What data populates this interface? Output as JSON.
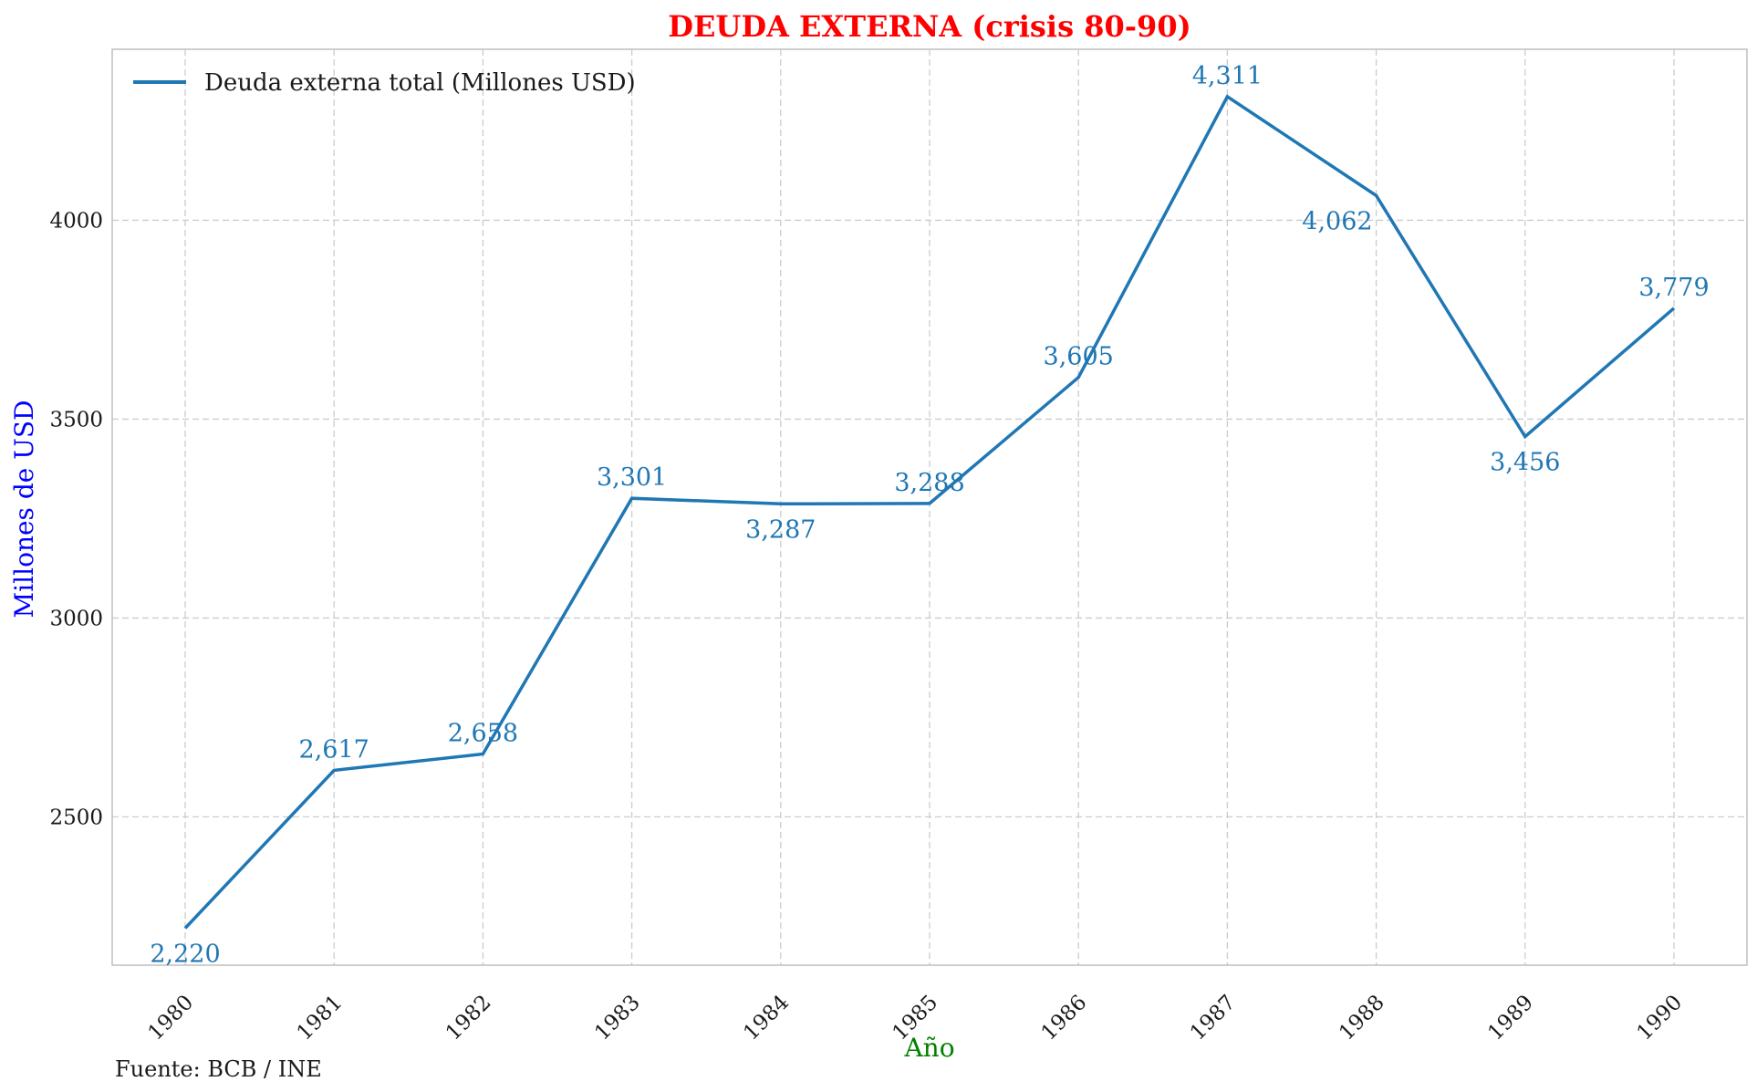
{
  "chart_data": {
    "type": "line",
    "title": "DEUDA EXTERNA (crisis 80-90)",
    "xlabel": "Año",
    "ylabel": "Millones de USD",
    "x": [
      "1980",
      "1981",
      "1982",
      "1983",
      "1984",
      "1985",
      "1986",
      "1987",
      "1988",
      "1989",
      "1990"
    ],
    "series": [
      {
        "name": "Deuda externa total (Millones USD)",
        "values": [
          2220,
          2617,
          2658,
          3301,
          3287,
          3288,
          3605,
          4311,
          4062,
          3456,
          3779
        ],
        "labels": [
          "2,220",
          "2,617",
          "2,658",
          "3,301",
          "3,287",
          "3,288",
          "3,605",
          "4,311",
          "4,062",
          "3,456",
          "3,779"
        ],
        "color": "#1f77b4"
      }
    ],
    "yticks": [
      "2500",
      "3000",
      "3500",
      "4000"
    ],
    "ylim": [
      2127,
      4430
    ],
    "grid": true,
    "legend": "top-left",
    "source": "Fuente: BCB / INE",
    "colors": {
      "title": "#ff0000",
      "xlabel": "#008000",
      "ylabel": "#0000ff",
      "line": "#1f77b4",
      "grid": "#cccccc",
      "axes": "#bfbfbf",
      "text": "#1a1a1a"
    }
  }
}
